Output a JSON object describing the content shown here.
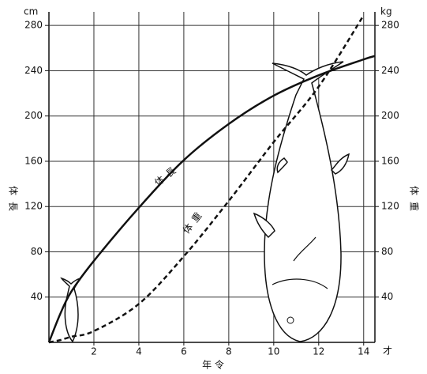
{
  "chart_data": {
    "type": "line",
    "x_label": "年 令",
    "x_unit": "才",
    "y_label": "体長",
    "y_unit": "cm",
    "y2_label": "体重",
    "y2_unit": "kg",
    "x": [
      0,
      0.5,
      1,
      2,
      4,
      6,
      8,
      10,
      12,
      14,
      14.5
    ],
    "xlim": [
      0,
      14.5
    ],
    "xticks": [
      2,
      4,
      6,
      8,
      10,
      12,
      14
    ],
    "ylim": [
      0,
      292
    ],
    "yticks": [
      40,
      80,
      120,
      160,
      200,
      240,
      280
    ],
    "y2lim": [
      0,
      292
    ],
    "y2ticks": [
      40,
      80,
      120,
      160,
      200,
      240,
      280
    ],
    "grid": true,
    "series": [
      {
        "name": "体長",
        "color": "#111111",
        "dash": false,
        "values": [
          0,
          25,
          45,
          72,
          119,
          161,
          193,
          218,
          236,
          250,
          253
        ]
      },
      {
        "name": "体重",
        "color": "#111111",
        "dash": true,
        "axis": "y2",
        "values": [
          0,
          2,
          5,
          10,
          34,
          76,
          125,
          177,
          226,
          289,
          null
        ]
      }
    ]
  }
}
